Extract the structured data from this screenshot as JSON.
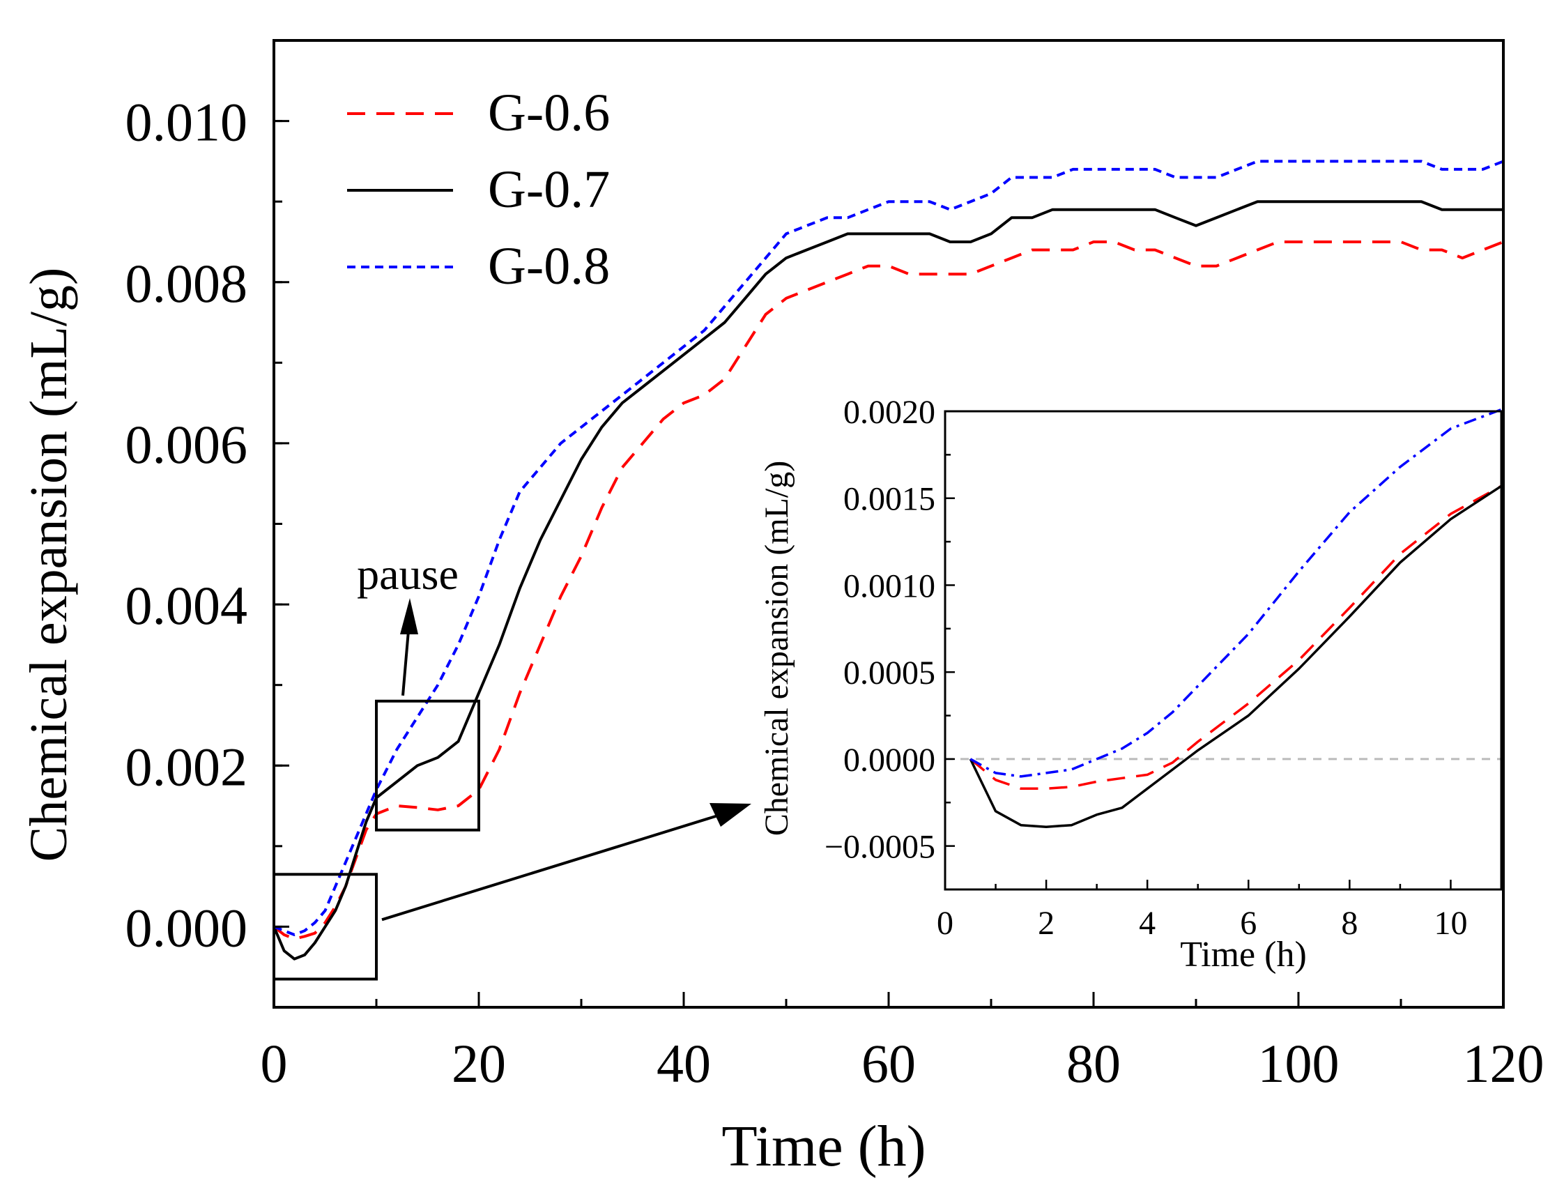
{
  "chart_data": [
    {
      "type": "line",
      "title": "",
      "xlabel": "Time (h)",
      "ylabel": "Chemical expansion (mL/g)",
      "xlim": [
        0,
        120
      ],
      "ylim": [
        -0.001,
        0.011
      ],
      "xticks": [
        0,
        20,
        40,
        60,
        80,
        100,
        120
      ],
      "xtick_labels": [
        "0",
        "20",
        "40",
        "60",
        "80",
        "100",
        "120"
      ],
      "yticks": [
        0.0,
        0.002,
        0.004,
        0.006,
        0.008,
        0.01
      ],
      "ytick_labels": [
        "0.000",
        "0.002",
        "0.004",
        "0.006",
        "0.008",
        "0.010"
      ],
      "grid": false,
      "legend": "top-left",
      "series": [
        {
          "name": "G-0.6",
          "color": "#ff0000",
          "style": "dashed",
          "x": [
            0,
            1,
            2,
            3,
            4,
            5,
            6,
            7,
            8,
            9,
            10,
            12,
            14,
            16,
            18,
            20,
            22,
            24,
            26,
            28,
            30,
            32,
            34,
            36,
            38,
            40,
            42,
            44,
            46,
            48,
            50,
            52,
            54,
            56,
            58,
            60,
            62,
            64,
            66,
            68,
            70,
            72,
            74,
            76,
            78,
            80,
            82,
            84,
            86,
            88,
            90,
            92,
            94,
            96,
            98,
            100,
            102,
            104,
            106,
            108,
            110,
            112,
            114,
            116,
            118,
            120
          ],
          "y": [
            0,
            -0.0001,
            -0.00015,
            -0.00012,
            -8e-05,
            5e-05,
            0.00025,
            0.0005,
            0.00085,
            0.0012,
            0.0014,
            0.0015,
            0.00148,
            0.00145,
            0.0015,
            0.0017,
            0.0022,
            0.0029,
            0.0035,
            0.0041,
            0.0046,
            0.0052,
            0.0057,
            0.006,
            0.0063,
            0.0065,
            0.0066,
            0.0068,
            0.0072,
            0.0076,
            0.0078,
            0.0079,
            0.008,
            0.0081,
            0.0082,
            0.0082,
            0.0081,
            0.0081,
            0.0081,
            0.0081,
            0.0082,
            0.0083,
            0.0084,
            0.0084,
            0.0084,
            0.0085,
            0.0085,
            0.0084,
            0.0084,
            0.0083,
            0.0082,
            0.0082,
            0.0083,
            0.0084,
            0.0085,
            0.0085,
            0.0085,
            0.0085,
            0.0085,
            0.0085,
            0.0085,
            0.0084,
            0.0084,
            0.0083,
            0.0084,
            0.0085
          ]
        },
        {
          "name": "G-0.7",
          "color": "#000000",
          "style": "solid",
          "x": [
            0,
            1,
            2,
            3,
            4,
            5,
            6,
            7,
            8,
            9,
            10,
            12,
            14,
            16,
            18,
            20,
            22,
            24,
            26,
            28,
            30,
            32,
            34,
            36,
            38,
            40,
            42,
            44,
            46,
            48,
            50,
            52,
            54,
            56,
            58,
            60,
            62,
            64,
            66,
            68,
            70,
            72,
            74,
            76,
            78,
            80,
            82,
            84,
            86,
            88,
            90,
            92,
            94,
            96,
            98,
            100,
            102,
            104,
            106,
            108,
            110,
            112,
            114,
            116,
            118,
            120
          ],
          "y": [
            0,
            -0.0003,
            -0.0004,
            -0.00035,
            -0.0002,
            0,
            0.0002,
            0.0005,
            0.0009,
            0.0013,
            0.0016,
            0.0018,
            0.002,
            0.0021,
            0.0023,
            0.0029,
            0.0035,
            0.0042,
            0.0048,
            0.0053,
            0.0058,
            0.0062,
            0.0065,
            0.0067,
            0.0069,
            0.0071,
            0.0073,
            0.0075,
            0.0078,
            0.0081,
            0.0083,
            0.0084,
            0.0085,
            0.0086,
            0.0086,
            0.0086,
            0.0086,
            0.0086,
            0.0085,
            0.0085,
            0.0086,
            0.0088,
            0.0088,
            0.0089,
            0.0089,
            0.0089,
            0.0089,
            0.0089,
            0.0089,
            0.0088,
            0.0087,
            0.0088,
            0.0089,
            0.009,
            0.009,
            0.009,
            0.009,
            0.009,
            0.009,
            0.009,
            0.009,
            0.009,
            0.0089,
            0.0089,
            0.0089,
            0.0089
          ]
        },
        {
          "name": "G-0.8",
          "color": "#0000ff",
          "style": "dotted",
          "x": [
            0,
            1,
            2,
            3,
            4,
            5,
            6,
            7,
            8,
            9,
            10,
            12,
            14,
            16,
            18,
            20,
            22,
            24,
            26,
            28,
            30,
            32,
            34,
            36,
            38,
            40,
            42,
            44,
            46,
            48,
            50,
            52,
            54,
            56,
            58,
            60,
            62,
            64,
            66,
            68,
            70,
            72,
            74,
            76,
            78,
            80,
            82,
            84,
            86,
            88,
            90,
            92,
            94,
            96,
            98,
            100,
            102,
            104,
            106,
            108,
            110,
            112,
            114,
            116,
            118,
            120
          ],
          "y": [
            0,
            -5e-05,
            -0.0001,
            -5e-05,
            5e-05,
            0.0002,
            0.0005,
            0.0008,
            0.0011,
            0.0014,
            0.0017,
            0.0022,
            0.0026,
            0.003,
            0.0035,
            0.0041,
            0.0048,
            0.0054,
            0.0057,
            0.006,
            0.0062,
            0.0064,
            0.0066,
            0.0068,
            0.007,
            0.0072,
            0.0074,
            0.0077,
            0.008,
            0.0083,
            0.0086,
            0.0087,
            0.0088,
            0.0088,
            0.0089,
            0.009,
            0.009,
            0.009,
            0.0089,
            0.009,
            0.0091,
            0.0093,
            0.0093,
            0.0093,
            0.0094,
            0.0094,
            0.0094,
            0.0094,
            0.0094,
            0.0093,
            0.0093,
            0.0093,
            0.0094,
            0.0095,
            0.0095,
            0.0095,
            0.0095,
            0.0095,
            0.0095,
            0.0095,
            0.0095,
            0.0095,
            0.0094,
            0.0094,
            0.0094,
            0.0095
          ]
        }
      ],
      "annotations": [
        {
          "text": "pause",
          "region_x": [
            10,
            20
          ],
          "region_y": [
            0.0012,
            0.0028
          ]
        },
        {
          "text": "",
          "region_x": [
            0,
            10
          ],
          "region_y": [
            -0.00065,
            0.00065
          ]
        }
      ]
    },
    {
      "type": "line",
      "title": "",
      "xlabel": "Time (h)",
      "ylabel": "Chemical expansion (mL/g)",
      "xlim": [
        0,
        11
      ],
      "ylim": [
        -0.00075,
        0.002
      ],
      "xticks": [
        0,
        2,
        4,
        6,
        8,
        10
      ],
      "xtick_labels": [
        "0",
        "2",
        "4",
        "6",
        "8",
        "10"
      ],
      "yticks": [
        -0.0005,
        0.0,
        0.0005,
        0.001,
        0.0015,
        0.002
      ],
      "ytick_labels": [
        "−0.0005",
        "0.0000",
        "0.0005",
        "0.0010",
        "0.0015",
        "0.0020"
      ],
      "grid": false,
      "zero_line": true,
      "series": [
        {
          "color": "#ff0000",
          "style": "dashed",
          "x": [
            0.5,
            1,
            1.5,
            2,
            2.5,
            3,
            3.5,
            4,
            4.5,
            5,
            6,
            7,
            8,
            9,
            10,
            11
          ],
          "y": [
            0,
            -0.00012,
            -0.00017,
            -0.00017,
            -0.00016,
            -0.00013,
            -0.00011,
            -9e-05,
            -2e-05,
            0.0001,
            0.00032,
            0.00057,
            0.00087,
            0.00118,
            0.00141,
            0.00157
          ]
        },
        {
          "color": "#000000",
          "style": "solid",
          "x": [
            0.5,
            1,
            1.5,
            2,
            2.5,
            3,
            3.5,
            4,
            4.5,
            5,
            6,
            7,
            8,
            9,
            10,
            11
          ],
          "y": [
            0,
            -0.0003,
            -0.00038,
            -0.00039,
            -0.00038,
            -0.00032,
            -0.00028,
            -0.00017,
            -6e-05,
            5e-05,
            0.00025,
            0.00052,
            0.00082,
            0.00113,
            0.00138,
            0.00157
          ]
        },
        {
          "color": "#0000ff",
          "style": "dashdot",
          "x": [
            0.5,
            1,
            1.5,
            2,
            2.5,
            3,
            3.5,
            4,
            4.5,
            5,
            6,
            7,
            8,
            9,
            10,
            11
          ],
          "y": [
            0,
            -8e-05,
            -0.0001,
            -8e-05,
            -6e-05,
            0.0,
            6e-05,
            0.00015,
            0.00027,
            0.00042,
            0.00072,
            0.00108,
            0.00142,
            0.00168,
            0.0019,
            0.00201
          ]
        }
      ]
    }
  ]
}
